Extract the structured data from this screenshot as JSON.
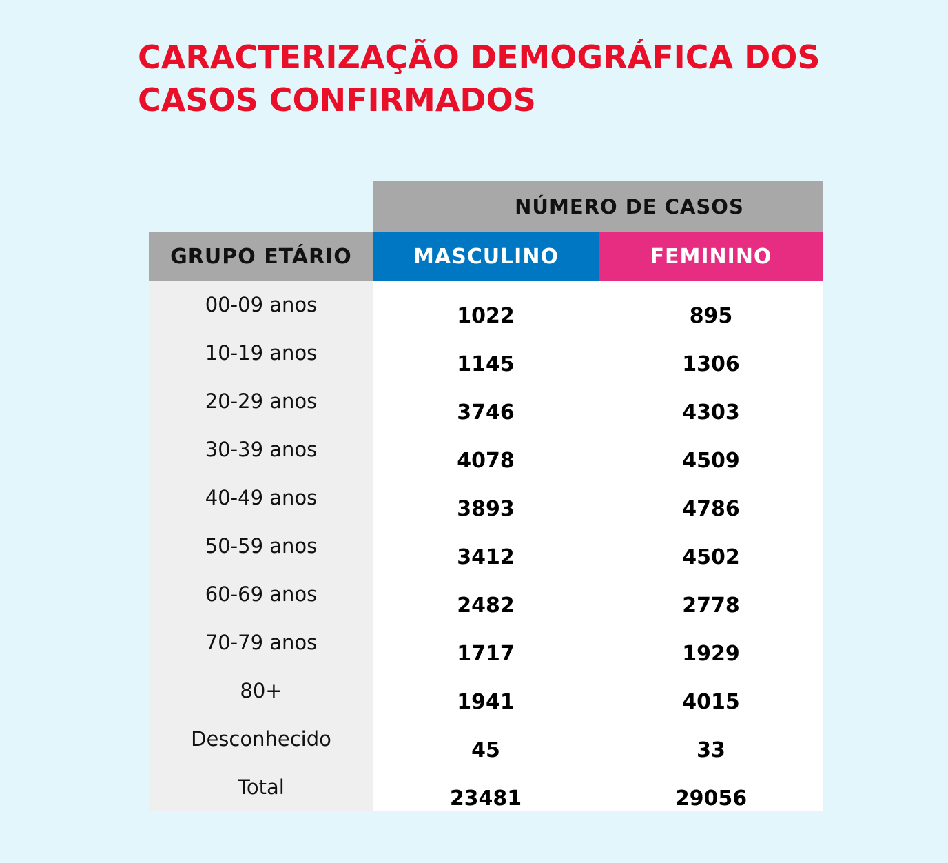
{
  "title": {
    "line1": "CARACTERIZAÇÃO DEMOGRÁFICA DOS",
    "line2": "CASOS CONFIRMADOS"
  },
  "colors": {
    "title": "#ea0f29",
    "background": "#e2f6fb",
    "header_gray": "#a8a8a8",
    "masculino": "#0077c2",
    "feminino": "#e72d81"
  },
  "chart_data": {
    "type": "table",
    "header_top": "NÚMERO DE CASOS",
    "columns": [
      "GRUPO ETÁRIO",
      "MASCULINO",
      "FEMININO"
    ],
    "rows": [
      {
        "group": "00-09 anos",
        "masculino": "1022",
        "feminino": "895"
      },
      {
        "group": "10-19 anos",
        "masculino": "1145",
        "feminino": "1306"
      },
      {
        "group": "20-29 anos",
        "masculino": "3746",
        "feminino": "4303"
      },
      {
        "group": "30-39 anos",
        "masculino": "4078",
        "feminino": "4509"
      },
      {
        "group": "40-49 anos",
        "masculino": "3893",
        "feminino": "4786"
      },
      {
        "group": "50-59 anos",
        "masculino": "3412",
        "feminino": "4502"
      },
      {
        "group": "60-69 anos",
        "masculino": "2482",
        "feminino": "2778"
      },
      {
        "group": "70-79 anos",
        "masculino": "1717",
        "feminino": "1929"
      },
      {
        "group": "80+",
        "masculino": "1941",
        "feminino": "4015"
      },
      {
        "group": "Desconhecido",
        "masculino": "45",
        "feminino": "33"
      },
      {
        "group": "Total",
        "masculino": "23481",
        "feminino": "29056"
      }
    ]
  }
}
